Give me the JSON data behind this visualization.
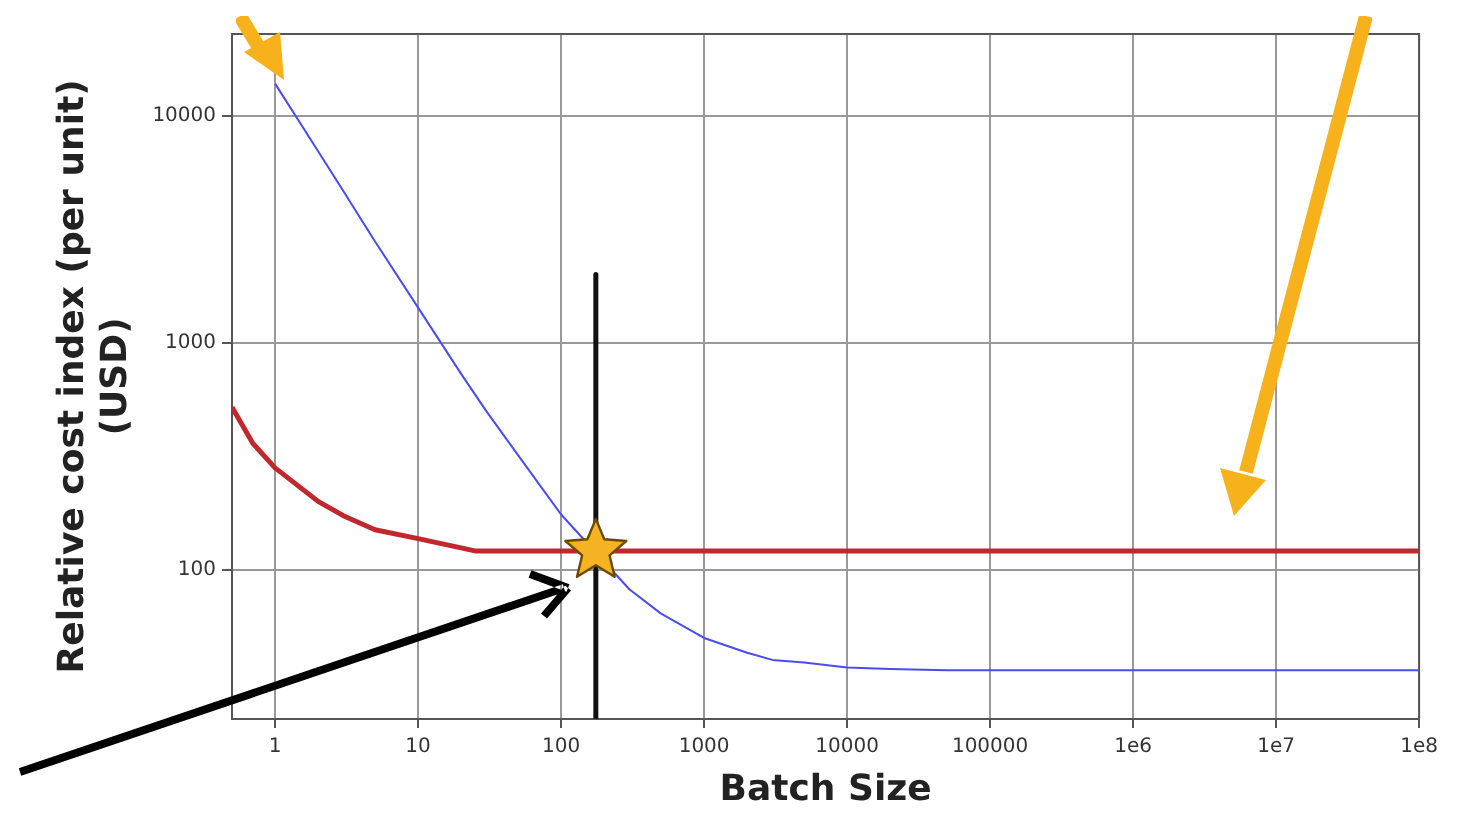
{
  "chart_data": {
    "type": "line",
    "xlabel": "Batch Size",
    "ylabel": "Relative cost index (per unit)\n(USD)",
    "log": "xy",
    "grid": true,
    "legend": false,
    "marker": "none",
    "line_style": "solid",
    "xlim": [
      0.5,
      100000000
    ],
    "xticks": [
      1,
      10,
      100,
      1000,
      10000,
      100000,
      {
        "value": 1000000,
        "label": "1e6"
      },
      {
        "value": 10000000,
        "label": "1e7"
      },
      {
        "value": 100000000,
        "label": "1e8"
      }
    ],
    "ylim": [
      22,
      23000
    ],
    "yticks": [
      100,
      1000,
      10000
    ],
    "series": [
      {
        "color": "#4b4bf5",
        "x": [
          1,
          2,
          3,
          5,
          10,
          20,
          30,
          50,
          100,
          300,
          500,
          1000,
          2000,
          3000,
          5000,
          10000,
          20000,
          50000,
          100000,
          1000000,
          10000000,
          100000000
        ],
        "values": [
          13900,
          7000,
          4670,
          2800,
          1430,
          730,
          500,
          320,
          175,
          82,
          64,
          50,
          43,
          40,
          39,
          37,
          36.5,
          36,
          36,
          36,
          36,
          36
        ]
      },
      {
        "color": "#c0282d",
        "x": [
          0.5,
          0.7,
          1,
          2,
          3,
          5,
          10,
          25,
          50,
          100,
          1000,
          10000,
          100000,
          1000000,
          10000000,
          100000000
        ],
        "values": [
          520,
          360,
          281,
          200,
          173,
          150,
          137,
          121,
          121,
          121,
          121,
          121,
          121,
          121,
          121,
          121
        ]
      },
      {
        "color": "#111111",
        "x": [
          175,
          175
        ],
        "values": [
          2000,
          22
        ]
      },
      {
        "type": "scatter",
        "marker": "star",
        "color": "#f5b324",
        "x": [
          175
        ],
        "values": [
          121
        ]
      }
    ]
  }
}
